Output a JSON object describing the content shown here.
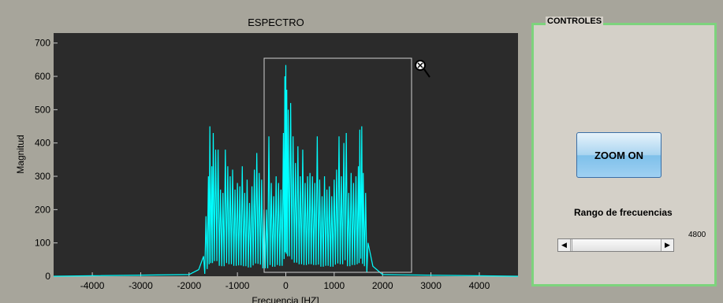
{
  "colors": {
    "axes_bg": "#2b2b2b",
    "figure_bg": "#a7a59b",
    "trace": "#00ffff",
    "panel_border": "#7dd37d",
    "zoom_box": "#d0d0d0"
  },
  "chart_data": {
    "type": "line",
    "title": "ESPECTRO",
    "xlabel": "Frecuencia [HZ]",
    "ylabel": "Magnitud",
    "xlim": [
      -4800,
      4800
    ],
    "ylim": [
      0,
      730
    ],
    "x_ticks": [
      -4000,
      -3000,
      -2000,
      -1000,
      0,
      1000,
      2000,
      3000,
      4000
    ],
    "y_ticks": [
      0,
      100,
      200,
      300,
      400,
      500,
      600,
      700
    ],
    "grid": false,
    "series": [
      {
        "x": [
          -4800,
          -2000,
          -1800,
          -1700,
          -1650,
          -1600,
          -1570,
          -1530,
          -1500,
          -1450,
          -1400,
          -1350,
          -1300,
          -1250,
          -1200,
          -1150,
          -1100,
          -1050,
          -1000,
          -950,
          -900,
          -850,
          -800,
          -750,
          -700,
          -650,
          -600,
          -550,
          -500,
          -450,
          -400,
          -350,
          -300,
          -250,
          -200,
          -150,
          -100,
          -50,
          -20,
          0,
          20,
          50,
          100,
          150,
          200,
          250,
          300,
          350,
          400,
          450,
          500,
          550,
          600,
          650,
          700,
          750,
          800,
          850,
          900,
          950,
          1000,
          1050,
          1100,
          1150,
          1200,
          1250,
          1300,
          1350,
          1400,
          1450,
          1500,
          1530,
          1570,
          1600,
          1650,
          1700,
          1800,
          2000,
          4800
        ],
        "y": [
          0,
          5,
          20,
          60,
          180,
          300,
          450,
          330,
          430,
          380,
          380,
          260,
          250,
          380,
          330,
          300,
          320,
          260,
          280,
          270,
          330,
          250,
          290,
          220,
          270,
          320,
          370,
          310,
          290,
          200,
          200,
          420,
          280,
          240,
          300,
          280,
          260,
          430,
          600,
          634,
          560,
          500,
          520,
          420,
          340,
          390,
          300,
          380,
          280,
          300,
          310,
          300,
          280,
          420,
          290,
          240,
          300,
          260,
          270,
          240,
          290,
          320,
          420,
          300,
          400,
          430,
          250,
          310,
          280,
          300,
          330,
          440,
          450,
          310,
          250,
          100,
          30,
          5,
          0
        ]
      }
    ]
  },
  "panel": {
    "title": "CONTROLES",
    "zoom_button_label": "ZOOM ON",
    "range_label": "Rango de frecuencias",
    "range_value": "4800",
    "slider_left_arrow": "◀",
    "slider_right_arrow": "▶"
  }
}
